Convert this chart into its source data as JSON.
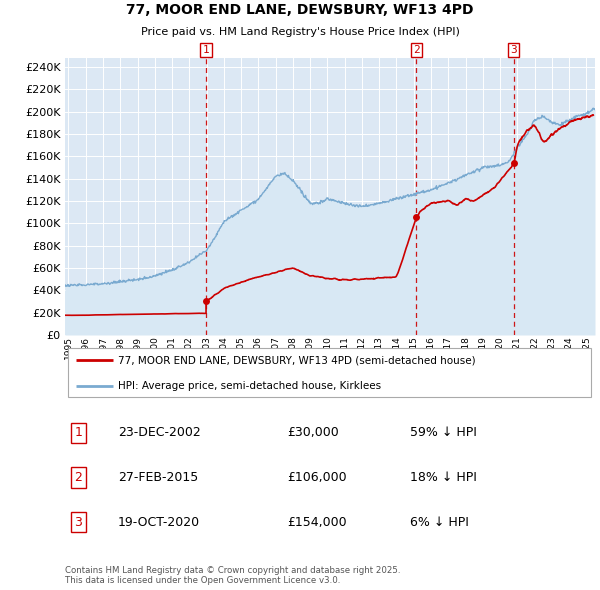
{
  "title": "77, MOOR END LANE, DEWSBURY, WF13 4PD",
  "subtitle": "Price paid vs. HM Land Registry's House Price Index (HPI)",
  "sales": [
    {
      "date": 2002.97,
      "price": 30000,
      "label": "1",
      "date_str": "23-DEC-2002",
      "price_str": "£30,000",
      "hpi_str": "59% ↓ HPI"
    },
    {
      "date": 2015.15,
      "price": 106000,
      "label": "2",
      "date_str": "27-FEB-2015",
      "price_str": "£106,000",
      "hpi_str": "18% ↓ HPI"
    },
    {
      "date": 2020.8,
      "price": 154000,
      "label": "3",
      "date_str": "19-OCT-2020",
      "price_str": "£154,000",
      "hpi_str": "6% ↓ HPI"
    }
  ],
  "legend_property": "77, MOOR END LANE, DEWSBURY, WF13 4PD (semi-detached house)",
  "legend_hpi": "HPI: Average price, semi-detached house, Kirklees",
  "footer": "Contains HM Land Registry data © Crown copyright and database right 2025.\nThis data is licensed under the Open Government Licence v3.0.",
  "property_color": "#cc0000",
  "hpi_color": "#7aaad0",
  "hpi_fill_color": "#d8e8f4",
  "vline_color": "#cc0000",
  "bg_color": "#dce8f4",
  "ylim": [
    0,
    248000
  ],
  "xlim": [
    1994.8,
    2025.5
  ],
  "yticks": [
    0,
    20000,
    40000,
    60000,
    80000,
    100000,
    120000,
    140000,
    160000,
    180000,
    200000,
    220000,
    240000
  ]
}
